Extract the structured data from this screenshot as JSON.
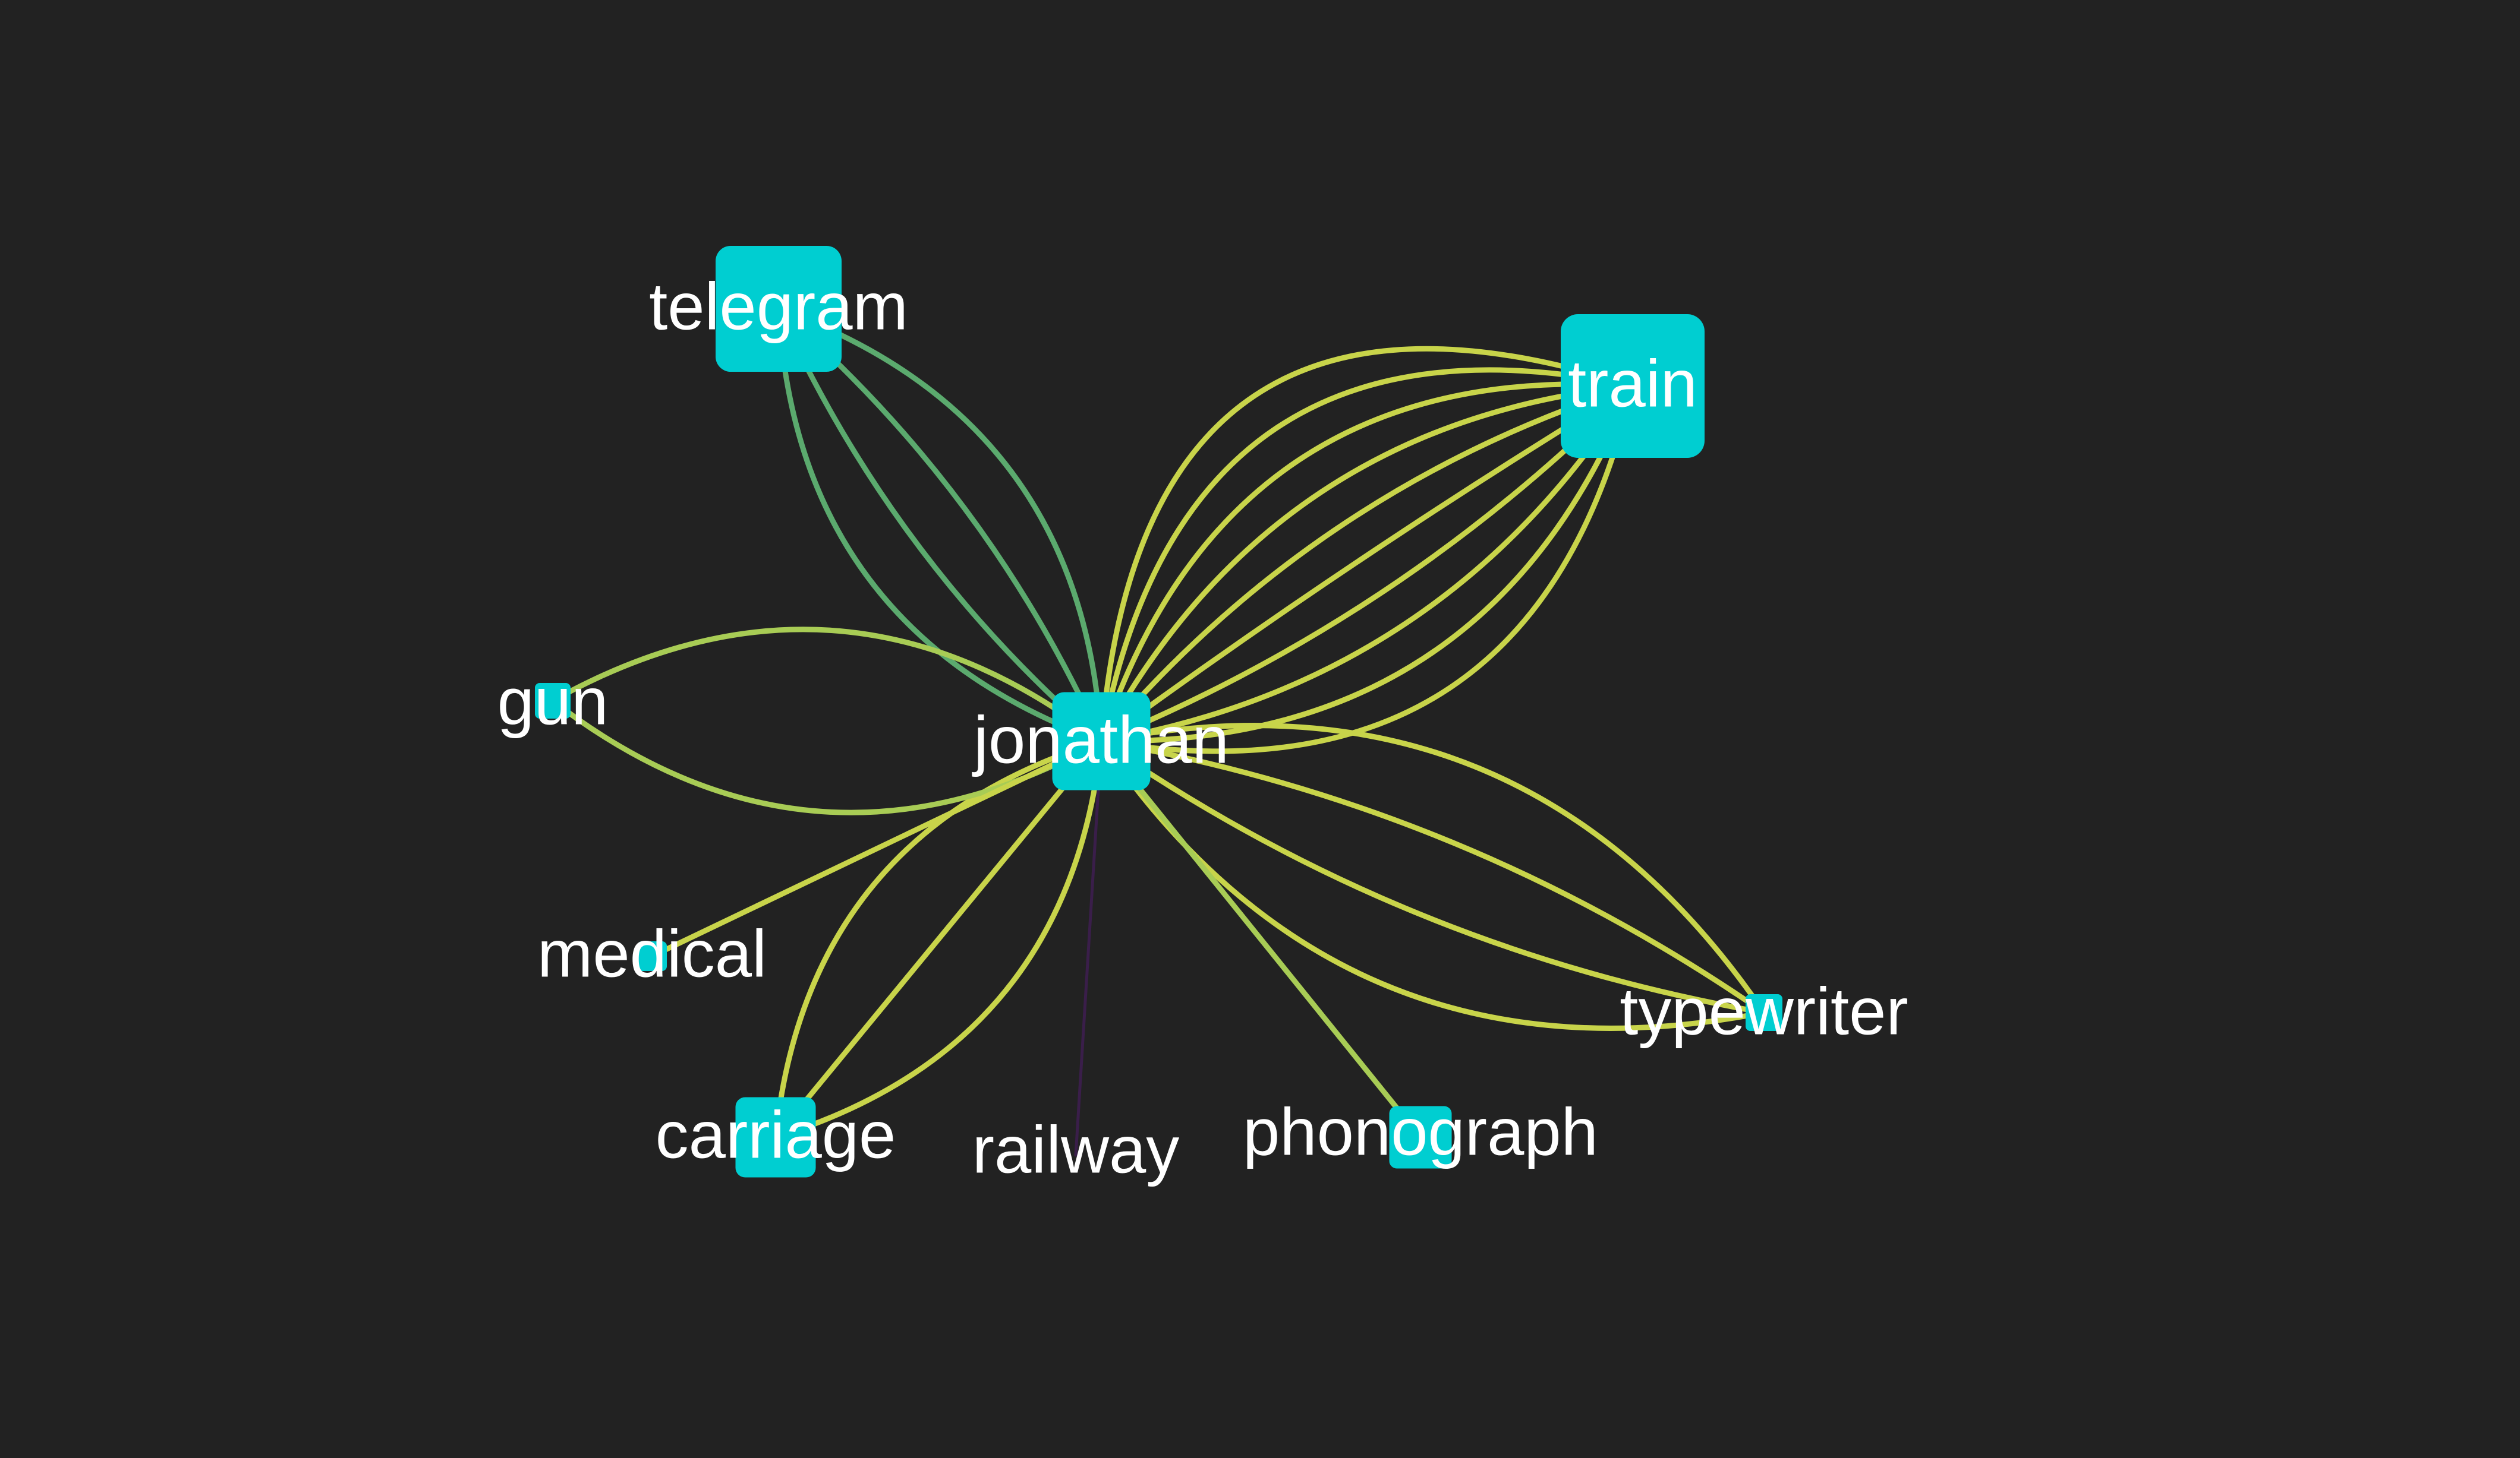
{
  "colors": {
    "background": "#222222",
    "node": "#00CED1",
    "label": "#ffffff",
    "edge_yellow": "#C8D44A",
    "edge_lime": "#A8CC55",
    "edge_green": "#5BAA6E",
    "edge_purple": "#3A1E4A"
  },
  "graph": {
    "hub": "jonathan",
    "nodes": [
      {
        "id": "jonathan",
        "label": "jonathan",
        "weight": 4
      },
      {
        "id": "telegram",
        "label": "telegram",
        "weight": 5
      },
      {
        "id": "train",
        "label": "train",
        "weight": 6
      },
      {
        "id": "gun",
        "label": "gun",
        "weight": 2
      },
      {
        "id": "medical",
        "label": "medical",
        "weight": 1
      },
      {
        "id": "carriage",
        "label": "carriage",
        "weight": 3
      },
      {
        "id": "railway",
        "label": "railway",
        "weight": 0
      },
      {
        "id": "phonograph",
        "label": "phonograph",
        "weight": 2.5
      },
      {
        "id": "typewriter",
        "label": "typewriter",
        "weight": 1.5
      }
    ],
    "edges": [
      {
        "source": "jonathan",
        "target": "train",
        "count": 10,
        "color": "edge_yellow"
      },
      {
        "source": "jonathan",
        "target": "telegram",
        "count": 4,
        "color": "edge_green"
      },
      {
        "source": "jonathan",
        "target": "typewriter",
        "count": 4,
        "color": "edge_yellow"
      },
      {
        "source": "jonathan",
        "target": "carriage",
        "count": 3,
        "color": "edge_yellow"
      },
      {
        "source": "jonathan",
        "target": "gun",
        "count": 2,
        "color": "edge_lime"
      },
      {
        "source": "jonathan",
        "target": "medical",
        "count": 1,
        "color": "edge_yellow"
      },
      {
        "source": "jonathan",
        "target": "phonograph",
        "count": 1,
        "color": "edge_lime"
      },
      {
        "source": "jonathan",
        "target": "railway",
        "count": 1,
        "color": "edge_purple"
      }
    ]
  }
}
